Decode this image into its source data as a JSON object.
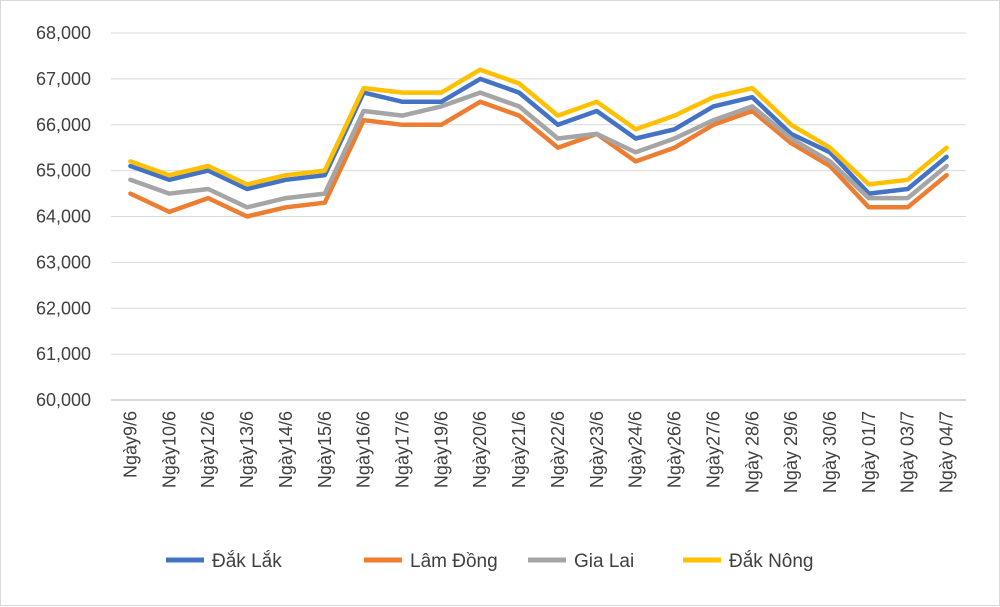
{
  "chart_data": {
    "type": "line",
    "title": "",
    "xlabel": "",
    "ylabel": "",
    "ylim": [
      60000,
      68000
    ],
    "yticks": [
      60000,
      61000,
      62000,
      63000,
      64000,
      65000,
      66000,
      67000,
      68000
    ],
    "ytick_labels": [
      "60,000",
      "61,000",
      "62,000",
      "63,000",
      "64,000",
      "65,000",
      "66,000",
      "67,000",
      "68,000"
    ],
    "grid": true,
    "legend_position": "bottom",
    "categories": [
      "Ngày9/6",
      "Ngày10/6",
      "Ngày12/6",
      "Ngày13/6",
      "Ngày14/6",
      "Ngày15/6",
      "Ngày16/6",
      "Ngày17/6",
      "Ngày19/6",
      "Ngày20/6",
      "Ngày21/6",
      "Ngày22/6",
      "Ngày23/6",
      "Ngày24/6",
      "Ngày26/6",
      "Ngày27/6",
      "Ngày 28/6",
      "Ngày 29/6",
      "Ngày 30/6",
      "Ngày 01/7",
      "Ngày 03/7",
      "Ngày 04/7"
    ],
    "series": [
      {
        "name": "Đắk Lắk",
        "color": "#4472C4",
        "values": [
          65100,
          64800,
          65000,
          64600,
          64800,
          64900,
          66700,
          66500,
          66500,
          67000,
          66700,
          66000,
          66300,
          65700,
          65900,
          66400,
          66600,
          65800,
          65400,
          64500,
          64600,
          65300
        ]
      },
      {
        "name": "Lâm Đồng",
        "color": "#ED7D31",
        "values": [
          64500,
          64100,
          64400,
          64000,
          64200,
          64300,
          66100,
          66000,
          66000,
          66500,
          66200,
          65500,
          65800,
          65200,
          65500,
          66000,
          66300,
          65600,
          65100,
          64200,
          64200,
          64900
        ]
      },
      {
        "name": "Gia Lai",
        "color": "#A5A5A5",
        "values": [
          64800,
          64500,
          64600,
          64200,
          64400,
          64500,
          66300,
          66200,
          66400,
          66700,
          66400,
          65700,
          65800,
          65400,
          65700,
          66100,
          66400,
          65700,
          65200,
          64400,
          64400,
          65100
        ]
      },
      {
        "name": "Đắk Nông",
        "color": "#FFC000",
        "values": [
          65200,
          64900,
          65100,
          64700,
          64900,
          65000,
          66800,
          66700,
          66700,
          67200,
          66900,
          66200,
          66500,
          65900,
          66200,
          66600,
          66800,
          66000,
          65500,
          64700,
          64800,
          65500
        ]
      }
    ]
  }
}
